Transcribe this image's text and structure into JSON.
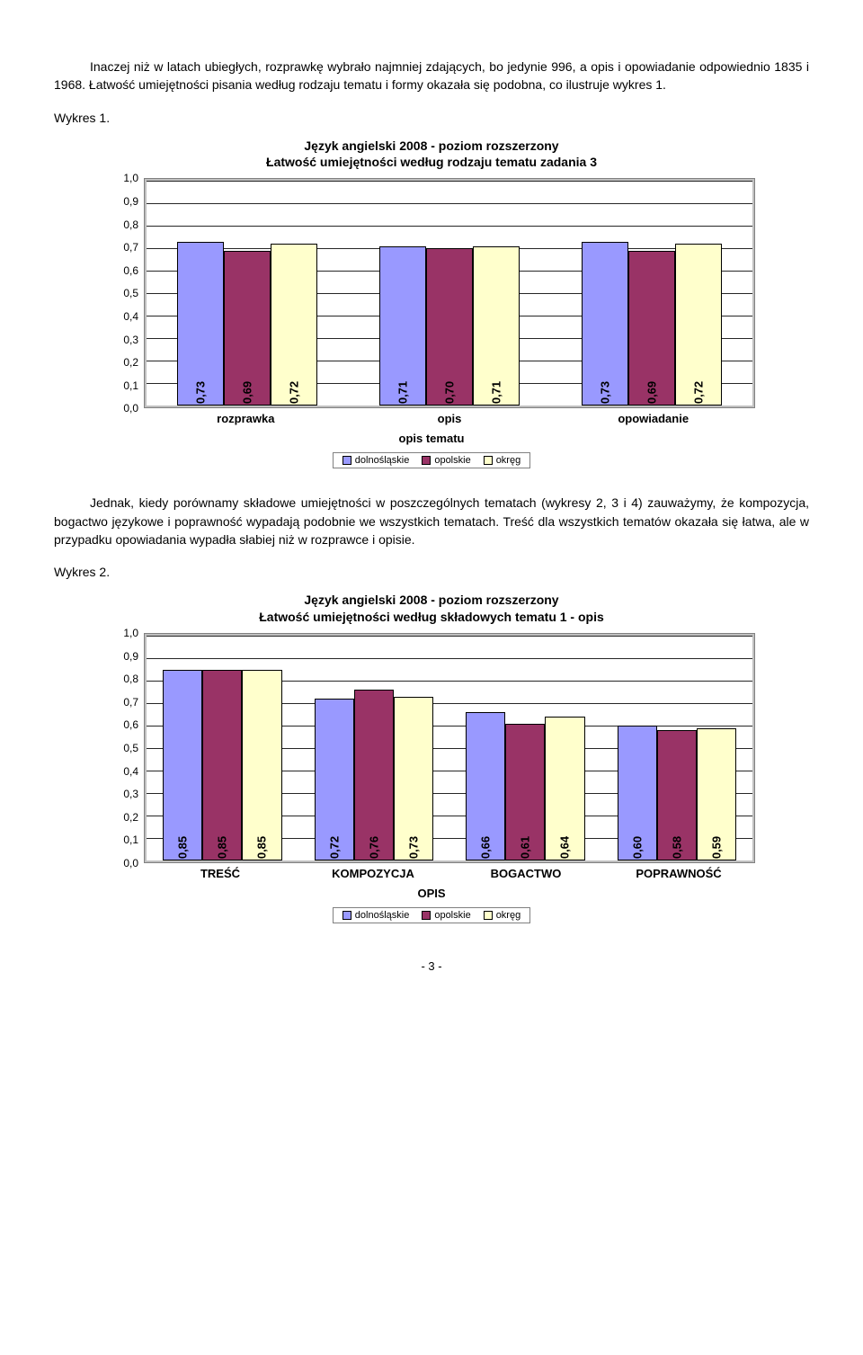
{
  "intro_text": "Inaczej niż w latach ubiegłych, rozprawkę wybrało najmniej zdających, bo jedynie 996, a opis i opowiadanie odpowiednio 1835 i 1968. Łatwość umiejętności pisania według rodzaju tematu i formy okazała się podobna, co ilustruje wykres 1.",
  "wykres1_label": "Wykres 1.",
  "middle_text": "Jednak, kiedy porównamy składowe umiejętności w poszczególnych tematach (wykresy 2, 3 i 4) zauważymy, że kompozycja, bogactwo językowe i poprawność wypadają podobnie we wszystkich tematach. Treść dla wszystkich tematów okazała się łatwa, ale w przypadku opowiadania wypadła słabiej niż w rozprawce i opisie.",
  "wykres2_label": "Wykres 2.",
  "page_number": "- 3 -",
  "colors": {
    "series1": "#9999ff",
    "series2": "#993366",
    "series3": "#ffffcc",
    "plot_bg": "#ffffff",
    "outer_bg": "#c0c0c0",
    "grid": "#000000",
    "text": "#000000"
  },
  "legend": {
    "items": [
      "dolnośląskie",
      "opolskie",
      "okręg"
    ]
  },
  "chart1": {
    "type": "bar",
    "title_line1": "Język angielski 2008 - poziom rozszerzony",
    "title_line2": "Łatwość umiejętności według rodzaju tematu zadania 3",
    "ylim": [
      0.0,
      1.0
    ],
    "ytick_step": 0.1,
    "ytick_labels": [
      "0,0",
      "0,1",
      "0,2",
      "0,3",
      "0,4",
      "0,5",
      "0,6",
      "0,7",
      "0,8",
      "0,9",
      "1,0"
    ],
    "axis_title": "opis tematu",
    "categories": [
      "rozprawka",
      "opis",
      "opowiadanie"
    ],
    "series": [
      {
        "label": "dolnośląskie",
        "values": [
          0.73,
          0.71,
          0.73
        ],
        "labels": [
          "0,73",
          "0,71",
          "0,73"
        ]
      },
      {
        "label": "opolskie",
        "values": [
          0.69,
          0.7,
          0.69
        ],
        "labels": [
          "0,69",
          "0,70",
          "0,69"
        ]
      },
      {
        "label": "okręg",
        "values": [
          0.72,
          0.71,
          0.72
        ],
        "labels": [
          "0,72",
          "0,71",
          "0,72"
        ]
      }
    ]
  },
  "chart2": {
    "type": "bar",
    "title_line1": "Język angielski 2008 - poziom rozszerzony",
    "title_line2": "Łatwość umiejętności według składowych tematu 1 - opis",
    "ylim": [
      0.0,
      1.0
    ],
    "ytick_step": 0.1,
    "ytick_labels": [
      "0,0",
      "0,1",
      "0,2",
      "0,3",
      "0,4",
      "0,5",
      "0,6",
      "0,7",
      "0,8",
      "0,9",
      "1,0"
    ],
    "axis_title": "OPIS",
    "categories": [
      "TREŚĆ",
      "KOMPOZYCJA",
      "BOGACTWO",
      "POPRAWNOŚĆ"
    ],
    "series": [
      {
        "label": "dolnośląskie",
        "values": [
          0.85,
          0.72,
          0.66,
          0.6
        ],
        "labels": [
          "0,85",
          "0,72",
          "0,66",
          "0,60"
        ]
      },
      {
        "label": "opolskie",
        "values": [
          0.85,
          0.76,
          0.61,
          0.58
        ],
        "labels": [
          "0,85",
          "0,76",
          "0,61",
          "0,58"
        ]
      },
      {
        "label": "okręg",
        "values": [
          0.85,
          0.73,
          0.64,
          0.59
        ],
        "labels": [
          "0,85",
          "0,73",
          "0,64",
          "0,59"
        ]
      }
    ]
  }
}
